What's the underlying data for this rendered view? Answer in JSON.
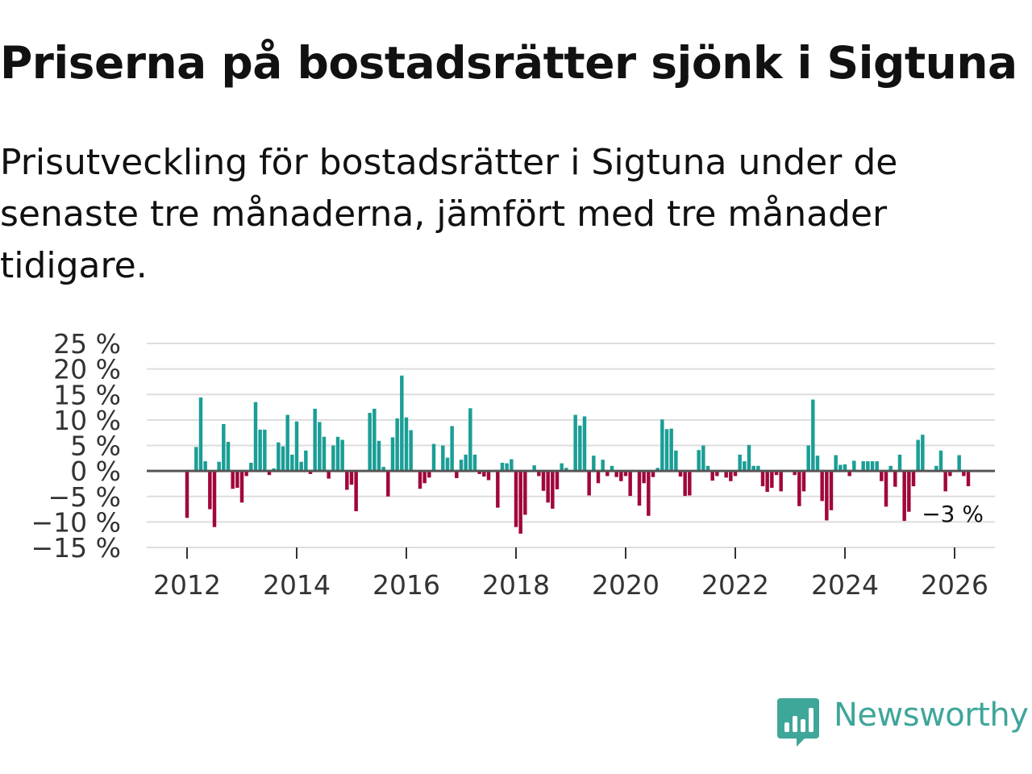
{
  "title": "Priserna på bostadsrätter sjönk i Sigtuna",
  "subtitle": "Prisutveckling för bostadsrätter i Sigtuna under de senaste tre månaderna, jämfört med tre månader tidigare.",
  "brand": {
    "name": "Newsworthy",
    "color": "#3fa69a",
    "icon": "newsworthy-logo-icon"
  },
  "colors": {
    "positive": "#1a9e96",
    "negative": "#a0063c",
    "zero_line": "#555555",
    "grid": "#dddddd"
  },
  "chart_data": {
    "type": "bar",
    "title": "Priserna på bostadsrätter sjönk i Sigtuna",
    "xlabel": "",
    "ylabel": "",
    "ylim": [
      -15,
      25
    ],
    "yticks": [
      25,
      20,
      15,
      10,
      5,
      0,
      -5,
      -10,
      -15
    ],
    "ytick_labels": [
      "25 %",
      "20 %",
      "15 %",
      "10 %",
      "5 %",
      "0 %",
      "−5 %",
      "−10 %",
      "−15 %"
    ],
    "xticks": [
      2012,
      2014,
      2016,
      2018,
      2020,
      2022,
      2024,
      2026
    ],
    "xtick_labels": [
      "2012",
      "2014",
      "2016",
      "2018",
      "2020",
      "2022",
      "2024",
      "2026"
    ],
    "start": "2012-01",
    "frequency": "monthly",
    "grid": true,
    "last_value_label": "−3 %",
    "values": [
      -9.2,
      0,
      4.7,
      14.4,
      1.9,
      -7.5,
      -11,
      1.8,
      9.2,
      5.7,
      -3.5,
      -3.3,
      -6.2,
      -1,
      1.6,
      13.5,
      8.1,
      8.1,
      -0.8,
      0.5,
      5.6,
      4.8,
      11,
      3.2,
      9.7,
      1.8,
      4,
      -0.6,
      12.2,
      9.6,
      6.7,
      -1.5,
      5,
      6.7,
      6.1,
      -3.7,
      -2.7,
      -7.9,
      0,
      0,
      11.4,
      12.2,
      5.9,
      0.8,
      -5,
      6.6,
      10.3,
      18.7,
      10.5,
      8,
      0,
      -3.5,
      -2.4,
      -1.3,
      5.3,
      0,
      5,
      2.6,
      8.8,
      -1.4,
      2.2,
      3.2,
      12.3,
      3.2,
      -0.6,
      -1.1,
      -1.8,
      0,
      -7.2,
      1.6,
      1.5,
      2.3,
      -11,
      -12.3,
      -8.6,
      0,
      1.1,
      -1,
      -3.9,
      -6.2,
      -7.4,
      -3.6,
      1.5,
      0.6,
      0,
      11,
      8.9,
      10.7,
      -4.8,
      3,
      -2.4,
      2.2,
      -1,
      1,
      -1.2,
      -2,
      -1,
      -4.9,
      0,
      -6.8,
      -2.4,
      -8.8,
      -1.2,
      0.6,
      10.1,
      8.2,
      8.3,
      4,
      -1.1,
      -4.9,
      -4.8,
      0,
      4.1,
      5,
      1,
      -1.9,
      -1,
      0,
      -1.3,
      -2,
      -1,
      3.2,
      1.9,
      5.1,
      1,
      1,
      -3,
      -4.1,
      -3.3,
      -0.8,
      -4,
      0,
      0,
      -0.8,
      -6.9,
      -4,
      5,
      14,
      3,
      -5.9,
      -9.7,
      -7.7,
      3.1,
      1.2,
      1.3,
      -1,
      2,
      0,
      1.9,
      1.9,
      1.9,
      1.9,
      -2,
      -7,
      1,
      -3.1,
      3.2,
      -9.8,
      -8,
      -3,
      6.1,
      7.1,
      0,
      0,
      1,
      4,
      -4,
      -1,
      0,
      3.1,
      -1,
      -3
    ]
  }
}
